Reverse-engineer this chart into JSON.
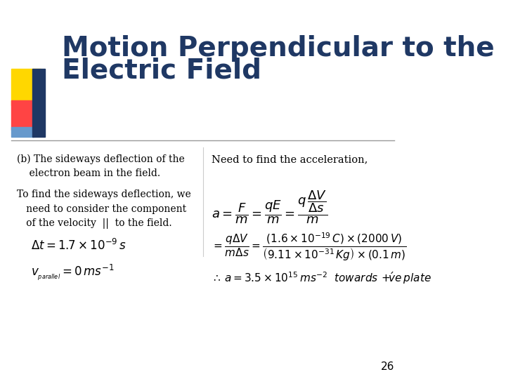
{
  "bg_color": "#ffffff",
  "title_line1": "Motion Perpendicular to the",
  "title_line2": "Electric Field",
  "title_color": "#1F3864",
  "title_fontsize": 28,
  "slide_number": "26",
  "left_text_b": "(b) The sideways deflection of the\n    electron beam in the field.",
  "left_text_main": "To find the sideways deflection, we\n   need to consider the component\n   of the velocity  ||  to the field.",
  "right_header": "Need to find the acceleration,",
  "accent_yellow": "#FFD700",
  "accent_red": "#FF4444",
  "accent_blue": "#1F3864",
  "accent_lightblue": "#6699CC"
}
